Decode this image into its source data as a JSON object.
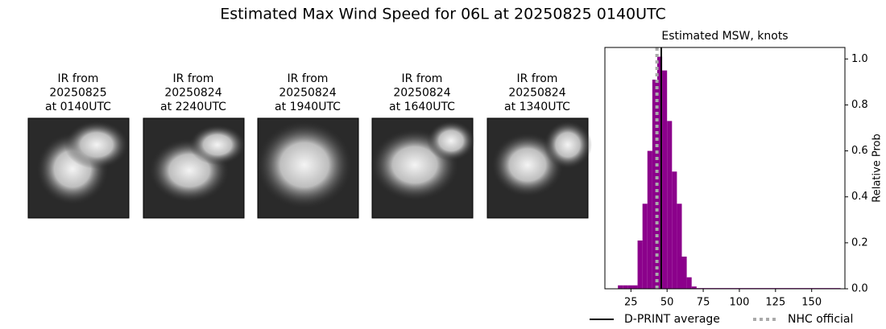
{
  "title": "Estimated Max Wind Speed for 06L at 20250825 0140UTC",
  "panels": [
    {
      "lines": [
        "IR from",
        "20250825",
        "at 0140UTC"
      ]
    },
    {
      "lines": [
        "IR from",
        "20250824",
        "at 2240UTC"
      ]
    },
    {
      "lines": [
        "IR from",
        "20250824",
        "at 1940UTC"
      ]
    },
    {
      "lines": [
        "IR from",
        "20250824",
        "at 1640UTC"
      ]
    },
    {
      "lines": [
        "IR from",
        "20250824",
        "at 1340UTC"
      ]
    }
  ],
  "chart_data": {
    "type": "histogram",
    "title": "Estimated MSW, knots",
    "ylabel": "Relative Prob",
    "y_axis_side": "right",
    "bins": [
      16,
      19.4,
      22.8,
      26.2,
      29.6,
      33,
      36.4,
      39.8,
      43.2,
      46.6,
      50,
      53.4,
      56.8,
      60.2,
      63.6,
      67,
      70.4,
      170
    ],
    "values": [
      0.015,
      0.015,
      0.015,
      0.015,
      0.21,
      0.37,
      0.6,
      0.91,
      1.01,
      0.95,
      0.73,
      0.51,
      0.37,
      0.14,
      0.05,
      0.01,
      0.003
    ],
    "color": "#8b008b",
    "xlim": [
      7,
      173
    ],
    "ylim": [
      0,
      1.05
    ],
    "xticks": [
      25,
      50,
      75,
      100,
      125,
      150
    ],
    "yticks": [
      {
        "value": 0,
        "label": "0.0"
      },
      {
        "value": 0.2,
        "label": "0.2"
      },
      {
        "value": 0.4,
        "label": "0.4"
      },
      {
        "value": 0.6,
        "label": "0.6"
      },
      {
        "value": 0.8,
        "label": "0.8"
      },
      {
        "value": 1,
        "label": "1.0"
      }
    ],
    "vlines": [
      {
        "name": "D-PRINT average",
        "x": 46,
        "color": "#000000",
        "style": "solid"
      },
      {
        "name": "NHC official",
        "x": 43,
        "color": "#aaaaaa",
        "style": "dotted"
      }
    ]
  }
}
